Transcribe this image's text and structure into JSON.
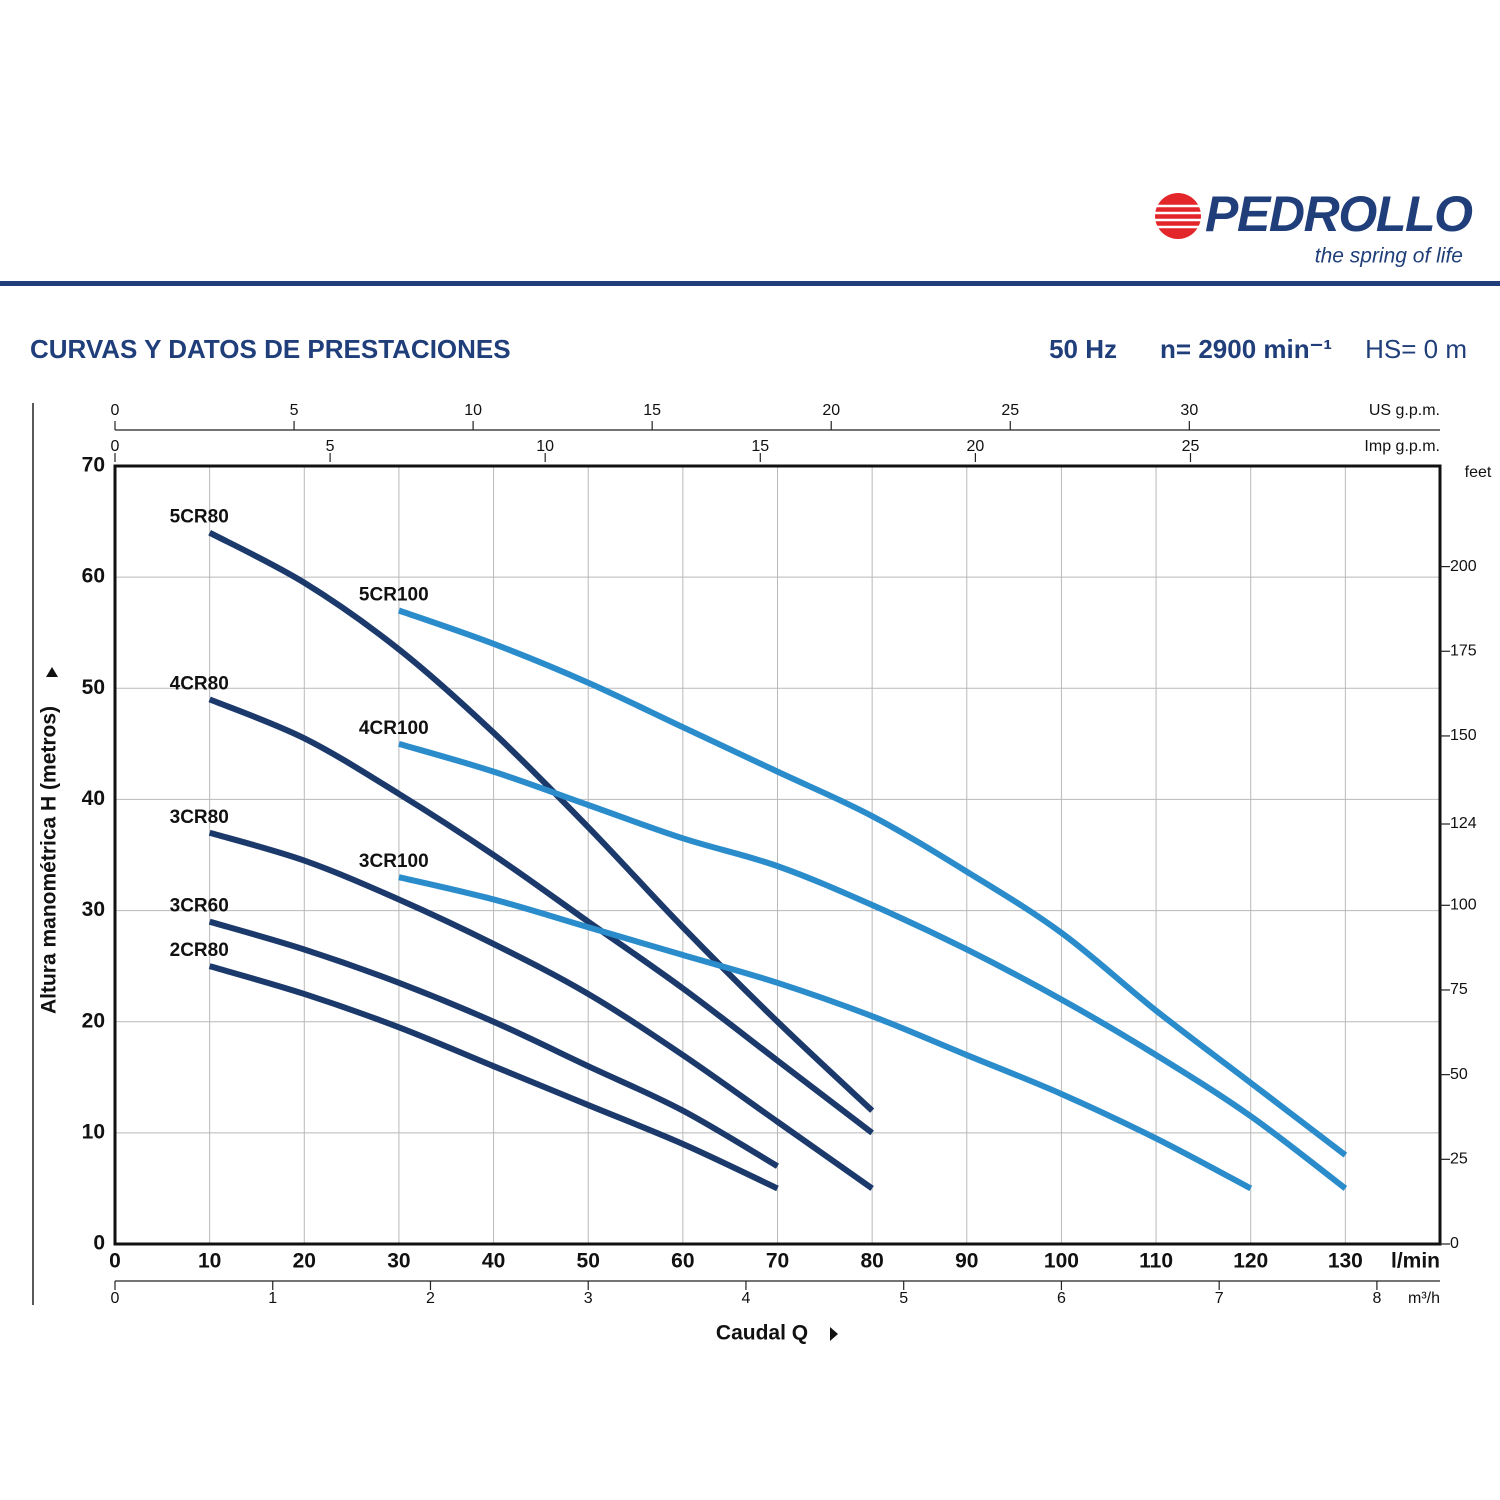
{
  "page_header": {
    "brand": "PEDROLLO",
    "tagline": "the spring of life"
  },
  "chart_data": {
    "type": "line",
    "title": "CURVAS Y DATOS DE PRESTACIONES",
    "conditions": [
      "50 Hz",
      "n= 2900 min⁻¹",
      "HS= 0 m"
    ],
    "xlabel": "Caudal Q",
    "xunit": "l/min",
    "ylabel": "Altura manométrica H (metros)",
    "xlim": [
      0,
      140
    ],
    "xticks": [
      0,
      10,
      20,
      30,
      40,
      50,
      60,
      70,
      80,
      90,
      100,
      110,
      120,
      130
    ],
    "ylim": [
      0,
      70
    ],
    "yticks": [
      0,
      10,
      20,
      30,
      40,
      50,
      60,
      70
    ],
    "y2unit": "feet",
    "y2lim": [
      0,
      229.7
    ],
    "y2ticks": [
      0,
      25,
      50,
      75,
      100,
      124,
      150,
      175,
      200
    ],
    "top_axes": [
      {
        "unit": "US g.p.m.",
        "lim": [
          0,
          37
        ],
        "ticks": [
          0,
          5,
          10,
          15,
          20,
          25,
          30
        ]
      },
      {
        "unit": "Imp g.p.m.",
        "lim": [
          0,
          30.8
        ],
        "ticks": [
          0,
          5,
          10,
          15,
          20,
          25
        ]
      }
    ],
    "bottom_axis2": {
      "unit": "m³/h",
      "lim": [
        0,
        8.4
      ],
      "ticks": [
        0,
        1,
        2,
        3,
        4,
        5,
        6,
        7,
        8
      ]
    },
    "grid": true,
    "series": [
      {
        "name": "5CR80",
        "color": "#1b3a6b",
        "x": [
          10,
          20,
          30,
          40,
          50,
          60,
          70,
          80
        ],
        "values": [
          64,
          59.5,
          53.5,
          46,
          37.5,
          28.5,
          20,
          12
        ]
      },
      {
        "name": "4CR80",
        "color": "#1b3a6b",
        "x": [
          10,
          20,
          30,
          40,
          50,
          60,
          70,
          80
        ],
        "values": [
          49,
          45.5,
          40.5,
          35,
          29,
          23,
          16.5,
          10
        ]
      },
      {
        "name": "3CR80",
        "color": "#1b3a6b",
        "x": [
          10,
          20,
          30,
          40,
          50,
          60,
          70,
          80
        ],
        "values": [
          37,
          34.5,
          31,
          27,
          22.5,
          17,
          11,
          5
        ]
      },
      {
        "name": "3CR60",
        "color": "#1b3a6b",
        "x": [
          10,
          20,
          30,
          40,
          50,
          60,
          70
        ],
        "values": [
          29,
          26.5,
          23.5,
          20,
          16,
          12,
          7
        ]
      },
      {
        "name": "2CR80",
        "color": "#1b3a6b",
        "x": [
          10,
          20,
          30,
          40,
          50,
          60,
          70
        ],
        "values": [
          25,
          22.5,
          19.5,
          16,
          12.5,
          9,
          5
        ]
      },
      {
        "name": "5CR100",
        "color": "#2b8ccc",
        "x": [
          30,
          40,
          50,
          60,
          70,
          80,
          90,
          100,
          110,
          120,
          130
        ],
        "values": [
          57,
          54,
          50.5,
          46.5,
          42.5,
          38.5,
          33.5,
          28,
          21,
          14.5,
          8
        ]
      },
      {
        "name": "4CR100",
        "color": "#2b8ccc",
        "x": [
          30,
          40,
          50,
          60,
          70,
          80,
          90,
          100,
          110,
          120,
          130
        ],
        "values": [
          45,
          42.5,
          39.5,
          36.5,
          34,
          30.5,
          26.5,
          22,
          17,
          11.5,
          5
        ]
      },
      {
        "name": "3CR100",
        "color": "#2b8ccc",
        "x": [
          30,
          40,
          50,
          60,
          70,
          80,
          90,
          100,
          110,
          120
        ],
        "values": [
          33,
          31,
          28.5,
          26,
          23.5,
          20.5,
          17,
          13.5,
          9.5,
          5
        ]
      }
    ]
  }
}
